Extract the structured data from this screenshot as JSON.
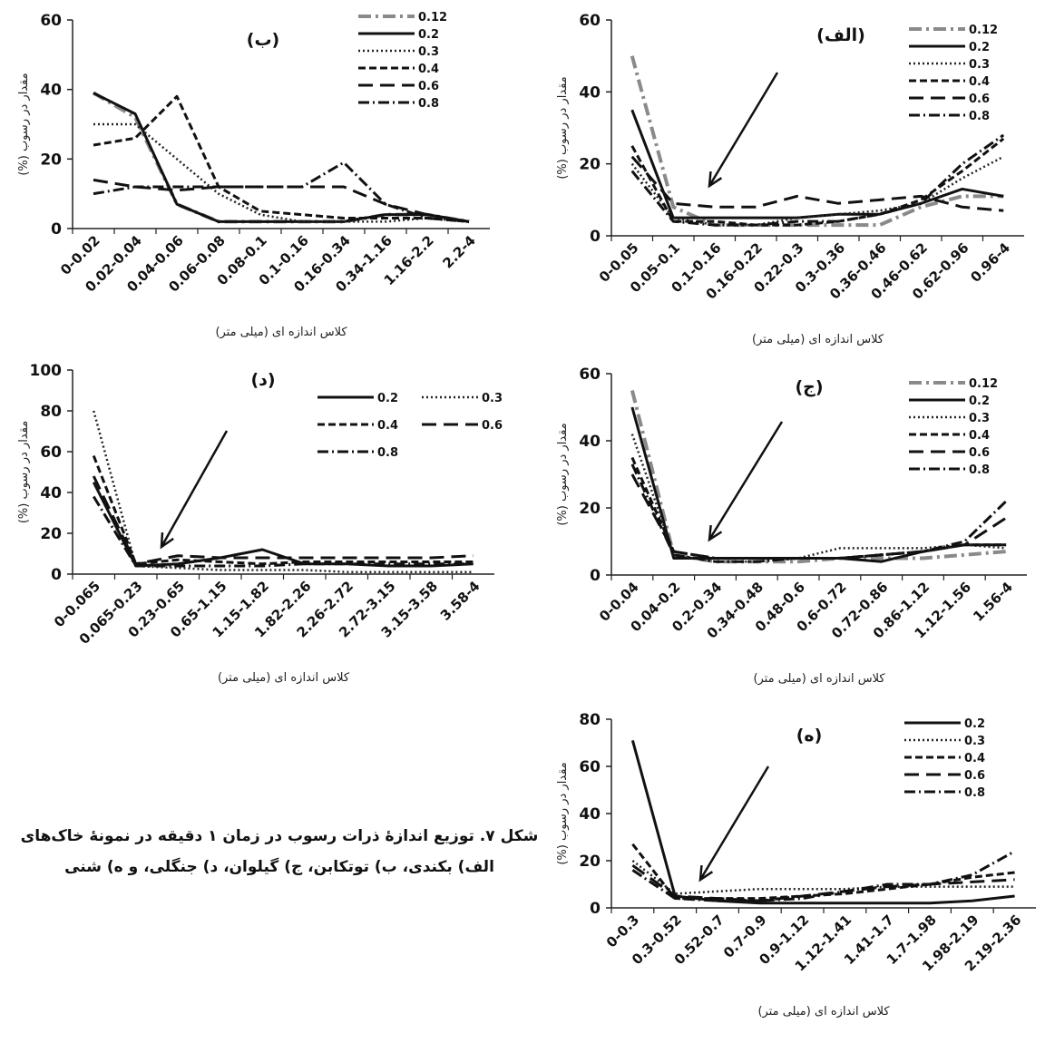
{
  "chart_data": [
    {
      "id": "alef",
      "type": "line",
      "panel_label": "(الف)",
      "xlabel": "کلاس اندازه ای (میلی متر)",
      "ylabel": "مقدار در رسوب (%)",
      "ylim": [
        0,
        60
      ],
      "yticks": [
        0,
        20,
        40,
        60
      ],
      "grid": false,
      "legend_position": "top-right",
      "categories": [
        "0-0.05",
        "0.05-0.1",
        "0.1-0.16",
        "0.16-0.22",
        "0.22-0.3",
        "0.3-0.36",
        "0.36-0.46",
        "0.46-0.62",
        "0.62-0.96",
        "0.96-4"
      ],
      "series": [
        {
          "name": "0.12",
          "style": "dash-dot-gray",
          "values": [
            50,
            8,
            3,
            3,
            3,
            3,
            3,
            8,
            11,
            11
          ]
        },
        {
          "name": "0.2",
          "style": "solid",
          "values": [
            35,
            5,
            5,
            5,
            5,
            6,
            6,
            9,
            13,
            11
          ]
        },
        {
          "name": "0.3",
          "style": "dotted",
          "values": [
            20,
            5,
            3,
            3,
            5,
            6,
            7,
            9,
            16,
            22
          ]
        },
        {
          "name": "0.4",
          "style": "dashed",
          "values": [
            25,
            4,
            4,
            3,
            3,
            4,
            6,
            10,
            18,
            27
          ]
        },
        {
          "name": "0.6",
          "style": "long-dash",
          "values": [
            22,
            9,
            8,
            8,
            11,
            9,
            10,
            11,
            8,
            7
          ]
        },
        {
          "name": "0.8",
          "style": "dash-dot",
          "values": [
            18,
            4,
            3,
            3,
            4,
            4,
            6,
            9,
            20,
            28
          ]
        }
      ]
    },
    {
      "id": "be",
      "type": "line",
      "panel_label": "(ب)",
      "xlabel": "کلاس اندازه ای (میلی متر)",
      "ylabel": "مقدار در رسوب (%)",
      "ylim": [
        0,
        60
      ],
      "yticks": [
        0,
        20,
        40,
        60
      ],
      "grid": false,
      "legend_position": "top-right",
      "categories": [
        "0-0.02",
        "0.02-0.04",
        "0.04-0.06",
        "0.06-0.08",
        "0.08-0.1",
        "0.1-0.16",
        "0.16-0.34",
        "0.34-1.16",
        "1.16-2.2",
        "2.2-4"
      ],
      "series": [
        {
          "name": "0.12",
          "style": "dash-dot-gray",
          "values": [
            39,
            32,
            7,
            2,
            2,
            2,
            2,
            4,
            4,
            2
          ]
        },
        {
          "name": "0.2",
          "style": "solid",
          "values": [
            39,
            33,
            7,
            2,
            2,
            2,
            2,
            4,
            4,
            2
          ]
        },
        {
          "name": "0.3",
          "style": "dotted",
          "values": [
            30,
            30,
            20,
            10,
            4,
            2,
            2,
            2,
            3,
            2
          ]
        },
        {
          "name": "0.4",
          "style": "dashed",
          "values": [
            24,
            26,
            38,
            12,
            5,
            4,
            3,
            3,
            3,
            2
          ]
        },
        {
          "name": "0.6",
          "style": "long-dash",
          "values": [
            14,
            12,
            11,
            12,
            12,
            12,
            12,
            7,
            4,
            2
          ]
        },
        {
          "name": "0.8",
          "style": "dash-dot",
          "values": [
            10,
            12,
            12,
            12,
            12,
            12,
            19,
            7,
            3,
            2
          ]
        }
      ]
    },
    {
      "id": "jim",
      "type": "line",
      "panel_label": "(ج)",
      "xlabel": "کلاس اندازه ای (میلی متر)",
      "ylabel": "مقدار در رسوب (%)",
      "ylim": [
        0,
        60
      ],
      "yticks": [
        0,
        20,
        40,
        60
      ],
      "grid": false,
      "legend_position": "top-right",
      "categories": [
        "0-0.04",
        "0.04-0.2",
        "0.2-0.34",
        "0.34-0.48",
        "0.48-0.6",
        "0.6-0.72",
        "0.72-0.86",
        "0.86-1.12",
        "1.12-1.56",
        "1.56-4"
      ],
      "series": [
        {
          "name": "0.12",
          "style": "dash-dot-gray",
          "values": [
            55,
            6,
            4,
            4,
            4,
            5,
            5,
            5,
            6,
            7
          ]
        },
        {
          "name": "0.2",
          "style": "solid",
          "values": [
            50,
            5,
            5,
            5,
            5,
            5,
            4,
            7,
            9,
            9
          ]
        },
        {
          "name": "0.3",
          "style": "dotted",
          "values": [
            42,
            6,
            4,
            4,
            5,
            8,
            8,
            8,
            9,
            8
          ]
        },
        {
          "name": "0.4",
          "style": "dashed",
          "values": [
            35,
            7,
            5,
            5,
            5,
            5,
            6,
            7,
            9,
            9
          ]
        },
        {
          "name": "0.6",
          "style": "long-dash",
          "values": [
            30,
            7,
            5,
            5,
            5,
            5,
            6,
            7,
            9,
            17
          ]
        },
        {
          "name": "0.8",
          "style": "dash-dot",
          "values": [
            33,
            6,
            4,
            4,
            5,
            5,
            6,
            7,
            10,
            22
          ]
        }
      ]
    },
    {
      "id": "dal",
      "type": "line",
      "panel_label": "(د)",
      "xlabel": "کلاس اندازه ای (میلی متر)",
      "ylabel": "مقدار در رسوب (%)",
      "ylim": [
        0,
        100
      ],
      "yticks": [
        0,
        20,
        40,
        60,
        80,
        100
      ],
      "grid": false,
      "legend_position": "top-right",
      "categories": [
        "0-0.065",
        "0.065-0.23",
        "0.23-0.65",
        "0.65-1.15",
        "1.15-1.82",
        "1.82-2.26",
        "2.26-2.72",
        "2.72-3.15",
        "3.15-3.58",
        "3.58-4"
      ],
      "series": [
        {
          "name": "0.2",
          "style": "solid",
          "values": [
            45,
            4,
            5,
            8,
            12,
            5,
            5,
            4,
            4,
            5
          ]
        },
        {
          "name": "0.3",
          "style": "dotted",
          "values": [
            80,
            4,
            3,
            2,
            2,
            2,
            1,
            1,
            1,
            1
          ]
        },
        {
          "name": "0.4",
          "style": "dashed",
          "values": [
            58,
            5,
            7,
            6,
            5,
            6,
            6,
            6,
            6,
            6
          ]
        },
        {
          "name": "0.6",
          "style": "long-dash",
          "values": [
            48,
            5,
            9,
            8,
            8,
            8,
            8,
            8,
            8,
            9
          ]
        },
        {
          "name": "0.8",
          "style": "dash-dot",
          "values": [
            38,
            4,
            4,
            4,
            4,
            5,
            5,
            5,
            5,
            5
          ]
        }
      ]
    },
    {
      "id": "he",
      "type": "line",
      "panel_label": "(ه)",
      "xlabel": "کلاس اندازه ای (میلی متر)",
      "ylabel": "مقدار در رسوب (%)",
      "ylim": [
        0,
        80
      ],
      "yticks": [
        0,
        20,
        40,
        60,
        80
      ],
      "grid": false,
      "legend_position": "top-right",
      "categories": [
        "0-0.3",
        "0.3-0.52",
        "0.52-0.7",
        "0.7-0.9",
        "0.9-1.12",
        "1.12-1.41",
        "1.41-1.7",
        "1.7-1.98",
        "1.98-2.19",
        "2.19-2.36"
      ],
      "series": [
        {
          "name": "0.2",
          "style": "solid",
          "values": [
            71,
            5,
            3,
            2,
            2,
            2,
            2,
            2,
            3,
            5
          ]
        },
        {
          "name": "0.3",
          "style": "dotted",
          "values": [
            20,
            6,
            7,
            8,
            8,
            8,
            9,
            9,
            9,
            9
          ]
        },
        {
          "name": "0.4",
          "style": "dashed",
          "values": [
            27,
            4,
            4,
            4,
            5,
            6,
            8,
            10,
            13,
            15
          ]
        },
        {
          "name": "0.6",
          "style": "long-dash",
          "values": [
            18,
            5,
            4,
            3,
            5,
            7,
            9,
            10,
            11,
            12
          ]
        },
        {
          "name": "0.8",
          "style": "dash-dot",
          "values": [
            16,
            4,
            3,
            3,
            4,
            7,
            10,
            10,
            14,
            24
          ]
        }
      ]
    }
  ],
  "caption": {
    "line1": "شکل ۷. توزیع اندازۀ ذرات رسوب در زمان ۱ دقیقه در نمونۀ خاک‌های",
    "line2": "الف) بکندی، ب) توتکابن، ج) گیلوان، د) جنگلی، و ه) شنی"
  }
}
